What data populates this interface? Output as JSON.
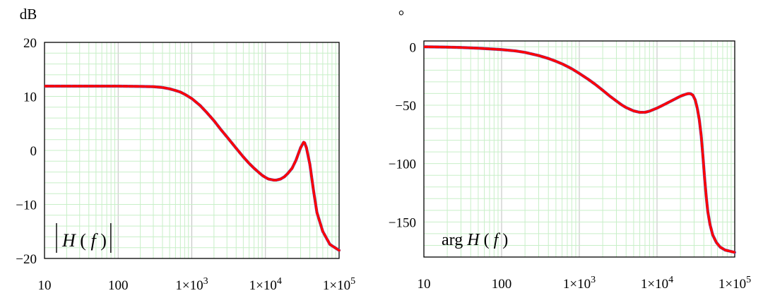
{
  "chart_data": [
    {
      "type": "line",
      "title": "",
      "ylabel": "dB",
      "xlabel": "",
      "legend": "|H(f)|",
      "x_scale": "log",
      "xlim": [
        10,
        100000
      ],
      "ylim": [
        -20,
        20
      ],
      "x_ticks": [
        {
          "value": 10,
          "label": "10"
        },
        {
          "value": 100,
          "label": "100"
        },
        {
          "value": 1000,
          "label": "1×10",
          "exp": "3"
        },
        {
          "value": 10000,
          "label": "1×10",
          "exp": "4"
        },
        {
          "value": 100000,
          "label": "1×10",
          "exp": "5"
        }
      ],
      "y_ticks": [
        {
          "value": 20,
          "label": "20"
        },
        {
          "value": 10,
          "label": "10"
        },
        {
          "value": 0,
          "label": "0"
        },
        {
          "value": -10,
          "label": "−10"
        },
        {
          "value": -20,
          "label": "−20"
        }
      ],
      "series": [
        {
          "color_main": "#ff0000",
          "color_secondary": "#6a4fb0",
          "points": [
            [
              10,
              11.9
            ],
            [
              30,
              11.9
            ],
            [
              100,
              11.9
            ],
            [
              200,
              11.85
            ],
            [
              300,
              11.8
            ],
            [
              400,
              11.65
            ],
            [
              500,
              11.4
            ],
            [
              600,
              11.1
            ],
            [
              700,
              10.8
            ],
            [
              800,
              10.4
            ],
            [
              1000,
              9.6
            ],
            [
              1300,
              8.3
            ],
            [
              1600,
              7.0
            ],
            [
              2000,
              5.5
            ],
            [
              2500,
              3.8
            ],
            [
              3000,
              2.5
            ],
            [
              4000,
              0.4
            ],
            [
              5000,
              -1.2
            ],
            [
              6000,
              -2.4
            ],
            [
              7000,
              -3.3
            ],
            [
              8000,
              -4.0
            ],
            [
              9000,
              -4.6
            ],
            [
              10000,
              -5.0
            ],
            [
              11000,
              -5.3
            ],
            [
              12000,
              -5.4
            ],
            [
              13000,
              -5.5
            ],
            [
              14000,
              -5.5
            ],
            [
              16000,
              -5.3
            ],
            [
              18000,
              -4.9
            ],
            [
              20000,
              -4.3
            ],
            [
              23000,
              -3.3
            ],
            [
              26000,
              -1.8
            ],
            [
              28000,
              -0.6
            ],
            [
              30000,
              0.5
            ],
            [
              32000,
              1.2
            ],
            [
              33000,
              1.5
            ],
            [
              34000,
              1.4
            ],
            [
              36000,
              0.5
            ],
            [
              40000,
              -2.5
            ],
            [
              45000,
              -7.5
            ],
            [
              50000,
              -11.5
            ],
            [
              60000,
              -15.0
            ],
            [
              75000,
              -17.4
            ],
            [
              100000,
              -18.5
            ]
          ]
        }
      ]
    },
    {
      "type": "line",
      "title": "",
      "ylabel": "°",
      "xlabel": "",
      "legend": "arg H(f)",
      "x_scale": "log",
      "xlim": [
        10,
        100000
      ],
      "ylim": [
        -180,
        5
      ],
      "x_ticks": [
        {
          "value": 10,
          "label": "10"
        },
        {
          "value": 100,
          "label": "100"
        },
        {
          "value": 1000,
          "label": "1×10",
          "exp": "3"
        },
        {
          "value": 10000,
          "label": "1×10",
          "exp": "4"
        },
        {
          "value": 100000,
          "label": "1×10",
          "exp": "5"
        }
      ],
      "y_ticks": [
        {
          "value": 0,
          "label": "0"
        },
        {
          "value": -50,
          "label": "−50"
        },
        {
          "value": -100,
          "label": "−100"
        },
        {
          "value": -150,
          "label": "−150"
        }
      ],
      "series": [
        {
          "color_main": "#ff0000",
          "color_secondary": "#6a4fb0",
          "points": [
            [
              10,
              0
            ],
            [
              20,
              -0.3
            ],
            [
              30,
              -0.6
            ],
            [
              50,
              -1.2
            ],
            [
              100,
              -2.4
            ],
            [
              150,
              -3.5
            ],
            [
              200,
              -4.8
            ],
            [
              300,
              -7.5
            ],
            [
              400,
              -10.0
            ],
            [
              500,
              -12.4
            ],
            [
              600,
              -14.6
            ],
            [
              700,
              -16.8
            ],
            [
              800,
              -18.8
            ],
            [
              1000,
              -22.8
            ],
            [
              1300,
              -27.8
            ],
            [
              1600,
              -32.1
            ],
            [
              2000,
              -37.2
            ],
            [
              2500,
              -42.5
            ],
            [
              3000,
              -46.4
            ],
            [
              3500,
              -49.7
            ],
            [
              4000,
              -52.0
            ],
            [
              5000,
              -54.9
            ],
            [
              6000,
              -56.1
            ],
            [
              7000,
              -56.1
            ],
            [
              8000,
              -55.1
            ],
            [
              10000,
              -52.5
            ],
            [
              13000,
              -48.7
            ],
            [
              16000,
              -45.6
            ],
            [
              20000,
              -42.3
            ],
            [
              23000,
              -40.8
            ],
            [
              25000,
              -40.1
            ],
            [
              27000,
              -40.1
            ],
            [
              29000,
              -41.5
            ],
            [
              31000,
              -45.5
            ],
            [
              33000,
              -52.8
            ],
            [
              35000,
              -62.5
            ],
            [
              37000,
              -76.0
            ],
            [
              39000,
              -94.0
            ],
            [
              41000,
              -113.0
            ],
            [
              43000,
              -128.5
            ],
            [
              45000,
              -141.0
            ],
            [
              48000,
              -152.0
            ],
            [
              52000,
              -161.0
            ],
            [
              58000,
              -167.5
            ],
            [
              65000,
              -171.5
            ],
            [
              75000,
              -174.0
            ],
            [
              100000,
              -176.0
            ]
          ]
        }
      ]
    }
  ]
}
